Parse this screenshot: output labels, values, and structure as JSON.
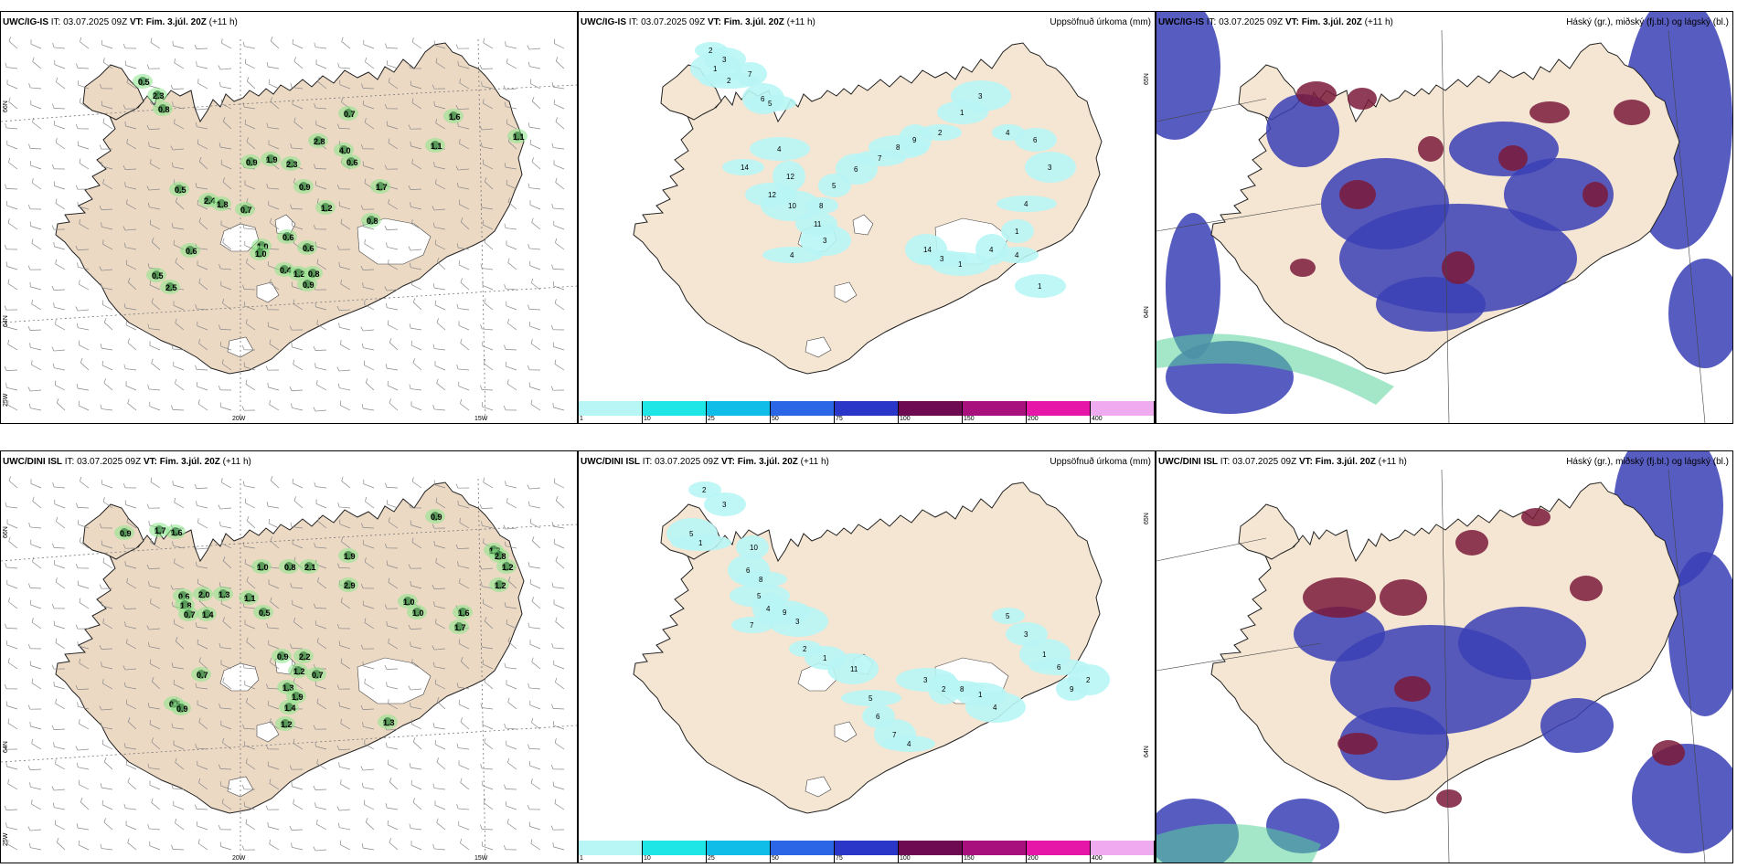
{
  "panels": [
    {
      "id": "p1",
      "title_model": "UWC/IG-IS",
      "title_it": " IT: 03.07.2025 09Z ",
      "title_vt_label": "VT:",
      "title_vt": " Fim. 3.júl. 20Z",
      "title_lead": " (+11 h)",
      "right_title": "",
      "lat_labels": [
        "66N",
        "64N"
      ],
      "corner_lon": "25W",
      "lon_labels": [
        "20W",
        "15W"
      ],
      "values": [
        "0.5",
        "2.3",
        "0.8",
        "0.7",
        "1.6",
        "2.8",
        "4.0",
        "0.6",
        "1.1",
        "0.9",
        "1.9",
        "2.3",
        "0.9",
        "1.7",
        "0.5",
        "2.4",
        "1.8",
        "0.7",
        "1.2",
        "0.8",
        "1.0",
        "0.6",
        "0.6",
        "1.0",
        "0.6",
        "0.4",
        "1.2",
        "0.8",
        "0.9",
        "0.5",
        "2.5",
        "1.1"
      ]
    },
    {
      "id": "p2",
      "title_model": "UWC/IG-IS",
      "title_it": " IT: 03.07.2025 09Z ",
      "title_vt_label": "VT:",
      "title_vt": " Fim. 3.júl. 20Z",
      "title_lead": " (+11 h)",
      "right_title": "Uppsöfnuð úrkoma (mm)",
      "lat_labels": [
        "65N",
        "64N"
      ],
      "values": [
        "2",
        "3",
        "1",
        "2",
        "7",
        "6",
        "5",
        "4",
        "12",
        "14",
        "12",
        "10",
        "8",
        "11",
        "3",
        "4",
        "5",
        "6",
        "7",
        "8",
        "9",
        "2",
        "1",
        "3",
        "4",
        "6",
        "3",
        "4",
        "1",
        "14",
        "3",
        "1",
        "4",
        "4",
        "1"
      ],
      "colorbar_ticks": [
        "1",
        "10",
        "25",
        "50",
        "75",
        "100",
        "150",
        "200",
        "400",
        ""
      ],
      "colorbar_colors": [
        "#b8f5f5",
        "#1ee6e6",
        "#10bde8",
        "#2a66e6",
        "#2a36c8",
        "#6e0a52",
        "#a8107e",
        "#e616a8",
        "#f0aaf0"
      ]
    },
    {
      "id": "p3",
      "title_model": "UWC/IG-IS",
      "title_it": " IT: 03.07.2025 09Z ",
      "title_vt_label": "VT:",
      "title_vt": " Fim. 3.júl. 20Z",
      "title_lead": " (+11 h)",
      "right_title": "Háský (gr.), miðský (fj.bl.) og lágský (bl.)"
    },
    {
      "id": "p4",
      "title_model": "UWC/DINI ISL",
      "title_it": " IT: 03.07.2025 09Z ",
      "title_vt_label": "VT:",
      "title_vt": " Fim. 3.júl. 20Z",
      "title_lead": " (+11 h)",
      "right_title": "",
      "lat_labels": [
        "66N",
        "64N"
      ],
      "corner_lon": "25W",
      "lon_labels": [
        "20W",
        "15W"
      ],
      "values": [
        "0.9",
        "1.7",
        "1.6",
        "1.0",
        "0.8",
        "2.1",
        "1.9",
        "2.9",
        "0.9",
        "1.3",
        "0.6",
        "2.0",
        "1.8",
        "1.3",
        "1.1",
        "0.5",
        "0.7",
        "1.4",
        "2.8",
        "1.2",
        "1.2",
        "0.9",
        "2.2",
        "1.2",
        "0.7",
        "1.3",
        "1.9",
        "1.4",
        "1.2",
        "0.5",
        "0.9",
        "1.0",
        "1.3",
        "1.6",
        "1.7",
        "0.7",
        "1.0"
      ]
    },
    {
      "id": "p5",
      "title_model": "UWC/DINI ISL",
      "title_it": " IT: 03.07.2025 09Z ",
      "title_vt_label": "VT:",
      "title_vt": " Fim. 3.júl. 20Z",
      "title_lead": " (+11 h)",
      "right_title": "Uppsöfnuð úrkoma (mm)",
      "lat_labels": [
        "65N",
        "64N"
      ],
      "values": [
        "2",
        "3",
        "5",
        "1",
        "10",
        "6",
        "8",
        "5",
        "4",
        "7",
        "9",
        "3",
        "2",
        "1",
        "11",
        "5",
        "6",
        "7",
        "4",
        "3",
        "2",
        "8",
        "1",
        "4",
        "5",
        "3",
        "1",
        "6",
        "9",
        "2"
      ],
      "colorbar_ticks": [
        "1",
        "10",
        "25",
        "50",
        "75",
        "100",
        "150",
        "200",
        "400",
        ""
      ],
      "colorbar_colors": [
        "#b8f5f5",
        "#1ee6e6",
        "#10bde8",
        "#2a66e6",
        "#2a36c8",
        "#6e0a52",
        "#a8107e",
        "#e616a8",
        "#f0aaf0"
      ]
    },
    {
      "id": "p6",
      "title_model": "UWC/DINI ISL",
      "title_it": " IT: 03.07.2025 09Z ",
      "title_vt_label": "VT:",
      "title_vt": " Fim. 3.júl. 20Z",
      "title_lead": " (+11 h)",
      "right_title": "Háský (gr.), miðský (fj.bl.) og lágský (bl.)"
    }
  ],
  "colors": {
    "land": "#f5e6d3",
    "land_wind": "#ecd9c4",
    "precip_light": "#b8f5f5",
    "high_cloud": "#5ad39a",
    "mid_cloud": "#7a1a3a",
    "low_cloud": "#3a3fb5"
  }
}
